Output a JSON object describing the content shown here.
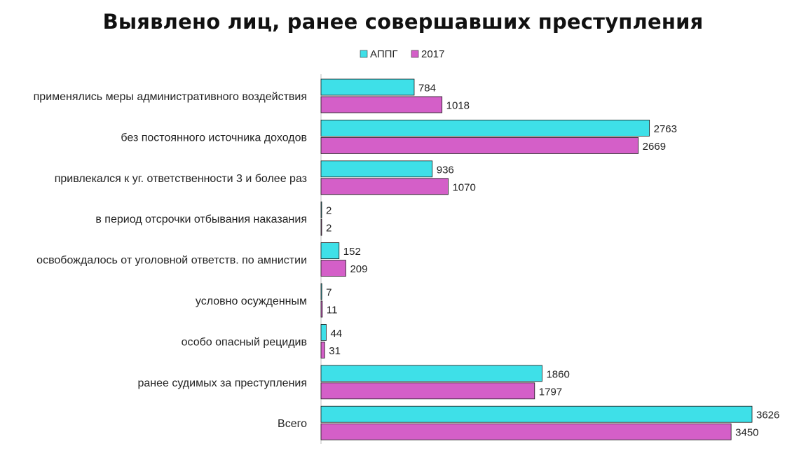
{
  "chart_data": {
    "type": "bar",
    "orientation": "horizontal",
    "title": "Выявлено лиц, ранее совершавших преступления",
    "categories": [
      "применялись меры административного  воздействия",
      "без постоянного источника доходов",
      "привлекался к уг. ответственности  3 и более раз",
      "в период отсрочки отбывания наказания",
      "освобождалось от уголовной ответств. по амнистии",
      "условно осужденным",
      "особо опасный рецидив",
      "ранее судимых за преступления",
      "Всего"
    ],
    "series": [
      {
        "name": "АППГ",
        "color": "#3ee0e8",
        "values": [
          784,
          2763,
          936,
          2,
          152,
          7,
          44,
          1860,
          3626
        ]
      },
      {
        "name": "2017",
        "color": "#d45fc8",
        "values": [
          1018,
          2669,
          1070,
          2,
          209,
          11,
          31,
          1797,
          3450
        ]
      }
    ],
    "xlim": [
      0,
      3626
    ],
    "legend": "top-center",
    "grid": false,
    "data_labels": true
  }
}
